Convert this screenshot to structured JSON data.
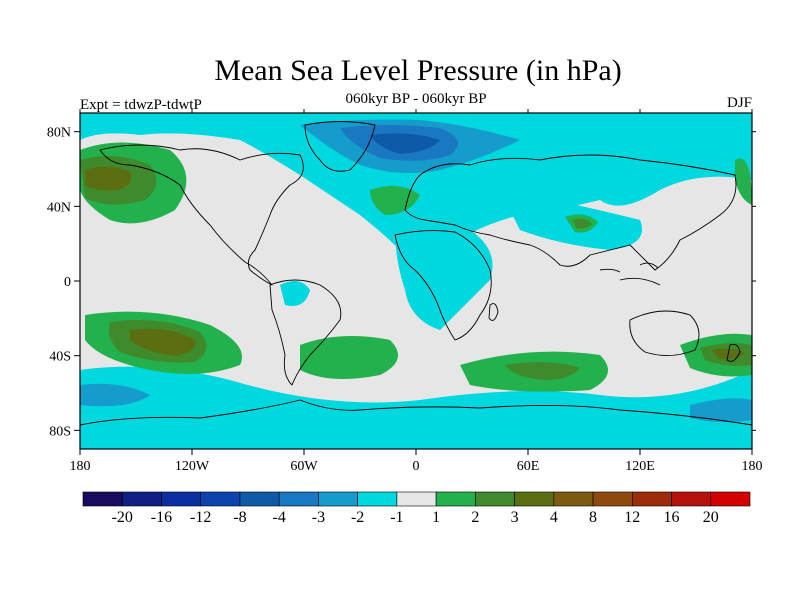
{
  "title": "Mean Sea Level Pressure (in hPa)",
  "left_label": "Expt = tdwzP-tdwtP",
  "center_label": "060kyr BP - 060kyr BP",
  "right_label": "DJF",
  "lon_ticks": [
    {
      "value": -180,
      "label": "180"
    },
    {
      "value": -120,
      "label": "120W"
    },
    {
      "value": -60,
      "label": "60W"
    },
    {
      "value": 0,
      "label": "0"
    },
    {
      "value": 60,
      "label": "60E"
    },
    {
      "value": 120,
      "label": "120E"
    },
    {
      "value": 180,
      "label": "180"
    }
  ],
  "lat_ticks": [
    {
      "value": 80,
      "label": "80N"
    },
    {
      "value": 40,
      "label": "40N"
    },
    {
      "value": 0,
      "label": "0"
    },
    {
      "value": -40,
      "label": "40S"
    },
    {
      "value": -80,
      "label": "80S"
    }
  ],
  "colorbar": {
    "colors": [
      "#1a0b5e",
      "#0e1f86",
      "#0b2fa0",
      "#0c43ad",
      "#0f5aa8",
      "#1a78c2",
      "#159ccc",
      "#00d8e0",
      "#e6e6e6",
      "#22b14c",
      "#3f8a2a",
      "#5b6e12",
      "#7d5a10",
      "#8e4a0e",
      "#9c2c0a",
      "#b5100c",
      "#d40000"
    ],
    "labels": [
      "-20",
      "-16",
      "-12",
      "-8",
      "-4",
      "-3",
      "-2",
      "-1",
      "1",
      "2",
      "3",
      "4",
      "8",
      "12",
      "16",
      "20"
    ]
  },
  "colors": {
    "background_neutral": "#e6e6e6",
    "neg1": "#00d8e0",
    "neg2": "#159ccc",
    "neg3": "#1a78c2",
    "neg4": "#0f5aa8",
    "neg5": "#0c43ad",
    "pos1": "#22b14c",
    "pos2": "#3f8a2a",
    "pos3": "#5b6e12",
    "pos4": "#7d5a10"
  }
}
